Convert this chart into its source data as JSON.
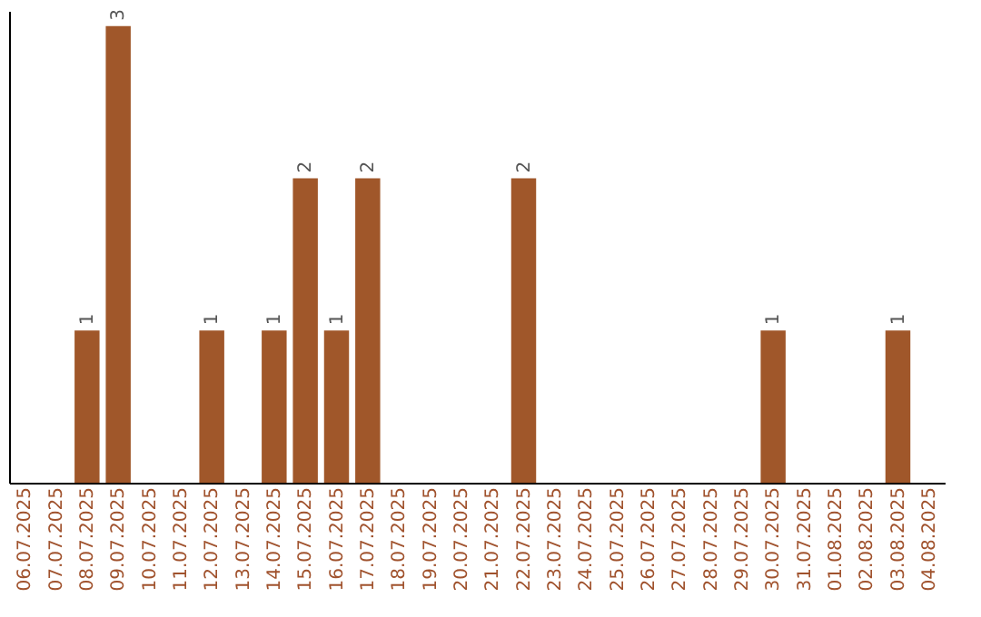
{
  "chart_data": {
    "type": "bar",
    "categories": [
      "06.07.2025",
      "07.07.2025",
      "08.07.2025",
      "09.07.2025",
      "10.07.2025",
      "11.07.2025",
      "12.07.2025",
      "13.07.2025",
      "14.07.2025",
      "15.07.2025",
      "16.07.2025",
      "17.07.2025",
      "18.07.2025",
      "19.07.2025",
      "20.07.2025",
      "21.07.2025",
      "22.07.2025",
      "23.07.2025",
      "24.07.2025",
      "25.07.2025",
      "26.07.2025",
      "27.07.2025",
      "28.07.2025",
      "29.07.2025",
      "30.07.2025",
      "31.07.2025",
      "01.08.2025",
      "02.08.2025",
      "03.08.2025",
      "04.08.2025"
    ],
    "values": [
      0,
      0,
      1,
      3,
      0,
      0,
      1,
      0,
      1,
      2,
      1,
      2,
      0,
      0,
      0,
      0,
      2,
      0,
      0,
      0,
      0,
      0,
      0,
      0,
      1,
      0,
      0,
      0,
      1,
      0
    ],
    "value_labels": [
      null,
      null,
      "1",
      "3",
      null,
      null,
      "1",
      null,
      "1",
      "2",
      "1",
      "2",
      null,
      null,
      null,
      null,
      "2",
      null,
      null,
      null,
      null,
      null,
      null,
      null,
      "1",
      null,
      null,
      null,
      "1",
      null
    ],
    "color": "#a0572a",
    "ylim": [
      0,
      3.1
    ],
    "tick_labels": "x",
    "grid": false
  }
}
